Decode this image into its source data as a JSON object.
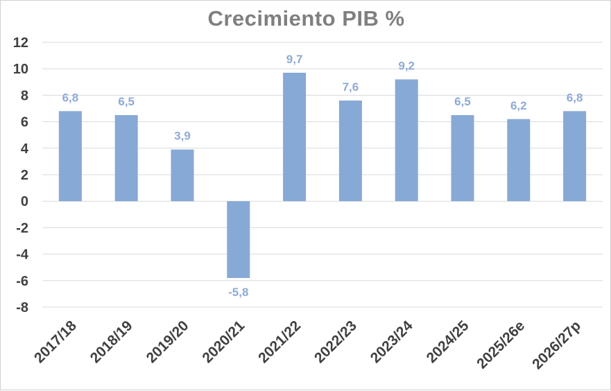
{
  "chart_data": {
    "type": "bar",
    "title": "Crecimiento PIB %",
    "categories": [
      "2017/18",
      "2018/19",
      "2019/20",
      "2020/21",
      "2021/22",
      "2022/23",
      "2023/24",
      "2024/25",
      "2025/26e",
      "2026/27p"
    ],
    "values": [
      6.8,
      6.5,
      3.9,
      -5.8,
      9.7,
      7.6,
      9.2,
      6.5,
      6.2,
      6.8
    ],
    "data_labels": [
      "6,8",
      "6,5",
      "3,9",
      "-5,8",
      "9,7",
      "7,6",
      "9,2",
      "6,5",
      "6,2",
      "6,8"
    ],
    "ylim": [
      -8,
      12
    ],
    "yticks": [
      12,
      10,
      8,
      6,
      4,
      2,
      0,
      -2,
      -4,
      -6,
      -8
    ],
    "grid": true,
    "legend": "none",
    "colors": {
      "bar": "#87a9d6",
      "data_label": "#8eaad6",
      "title": "#7f7f7f",
      "tick": "#404040",
      "grid": "#d9d9d9"
    }
  }
}
